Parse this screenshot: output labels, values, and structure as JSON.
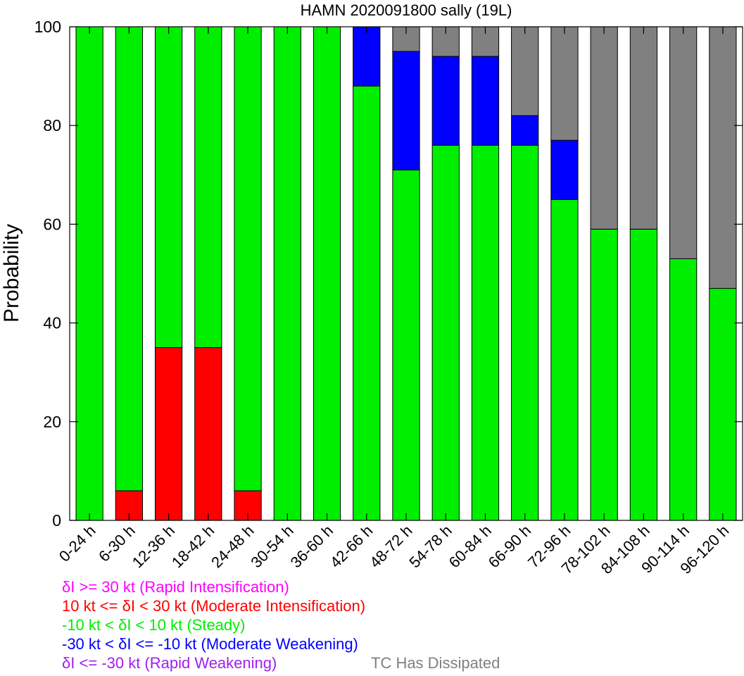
{
  "chart_data": {
    "type": "bar",
    "stacked": true,
    "title": "HAMN 2020091800 sally (19L)",
    "ylabel": "Probability",
    "xlabel": "",
    "ylim": [
      0,
      100
    ],
    "yticks": [
      "0",
      "20",
      "40",
      "60",
      "80",
      "100"
    ],
    "grid": false,
    "legend_placement": "bottom",
    "categories": [
      "0-24 h",
      "6-30 h",
      "12-36 h",
      "18-42 h",
      "24-48 h",
      "30-54 h",
      "36-60 h",
      "42-66 h",
      "48-72 h",
      "54-78 h",
      "60-84 h",
      "66-90 h",
      "72-96 h",
      "78-102 h",
      "84-108 h",
      "90-114 h",
      "96-120 h"
    ],
    "series": [
      {
        "key": "rapid_intensification",
        "color": "#ff00ff",
        "values": [
          0,
          0,
          0,
          0,
          0,
          0,
          0,
          0,
          0,
          0,
          0,
          0,
          0,
          0,
          0,
          0,
          0
        ]
      },
      {
        "key": "moderate_intensification",
        "color": "#ff0000",
        "values": [
          0,
          6,
          35,
          35,
          6,
          0,
          0,
          0,
          0,
          0,
          0,
          0,
          0,
          0,
          0,
          0,
          0
        ]
      },
      {
        "key": "steady",
        "color": "#00ee00",
        "values": [
          100,
          94,
          65,
          65,
          94,
          100,
          100,
          88,
          71,
          76,
          76,
          76,
          65,
          59,
          59,
          53,
          47
        ]
      },
      {
        "key": "moderate_weakening",
        "color": "#0000ff",
        "values": [
          0,
          0,
          0,
          0,
          0,
          0,
          0,
          12,
          24,
          18,
          18,
          6,
          12,
          0,
          0,
          0,
          0
        ]
      },
      {
        "key": "rapid_weakening",
        "color": "#a020f0",
        "values": [
          0,
          0,
          0,
          0,
          0,
          0,
          0,
          0,
          0,
          0,
          0,
          0,
          0,
          0,
          0,
          0,
          0
        ]
      },
      {
        "key": "dissipated",
        "color": "#808080",
        "values": [
          0,
          0,
          0,
          0,
          0,
          0,
          0,
          0,
          5,
          6,
          6,
          18,
          23,
          41,
          41,
          47,
          53
        ]
      }
    ],
    "legend": {
      "rapid_intensification": {
        "text": "δI >= 30 kt (Rapid Intensification)",
        "color": "#ff00ff"
      },
      "moderate_intensification": {
        "text": "10 kt <= δI < 30 kt (Moderate Intensification)",
        "color": "#ff0000"
      },
      "steady": {
        "text": "-10 kt < δI < 10 kt (Steady)",
        "color": "#00ee00"
      },
      "moderate_weakening": {
        "text": "-30 kt < δI <= -10 kt (Moderate Weakening)",
        "color": "#0000ff"
      },
      "rapid_weakening": {
        "text": "δI <= -30 kt (Rapid Weakening)",
        "color": "#a020f0"
      },
      "dissipated": {
        "text": "TC Has Dissipated",
        "color": "#808080"
      }
    }
  }
}
